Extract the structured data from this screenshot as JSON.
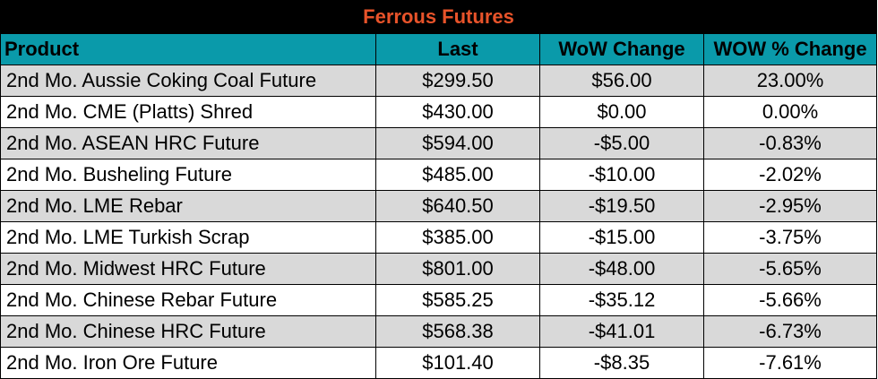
{
  "title": "Ferrous Futures",
  "colors": {
    "title_bg": "#000000",
    "title_text": "#e8532a",
    "header_bg": "#0a9aaa",
    "row_shaded": "#d9d9d9",
    "row_plain": "#ffffff"
  },
  "headers": [
    "Product",
    "Last",
    "WoW Change",
    "WOW % Change"
  ],
  "rows": [
    [
      "2nd Mo. Aussie Coking Coal Future",
      "$299.50",
      "$56.00",
      "23.00%"
    ],
    [
      "2nd Mo. CME (Platts) Shred",
      "$430.00",
      "$0.00",
      "0.00%"
    ],
    [
      "2nd Mo. ASEAN HRC Future",
      "$594.00",
      "-$5.00",
      "-0.83%"
    ],
    [
      "2nd Mo. Busheling Future",
      "$485.00",
      "-$10.00",
      "-2.02%"
    ],
    [
      "2nd Mo. LME Rebar",
      "$640.50",
      "-$19.50",
      "-2.95%"
    ],
    [
      "2nd Mo. LME Turkish Scrap",
      "$385.00",
      "-$15.00",
      "-3.75%"
    ],
    [
      "2nd Mo. Midwest HRC Future",
      "$801.00",
      "-$48.00",
      "-5.65%"
    ],
    [
      "2nd Mo. Chinese Rebar Future",
      "$585.25",
      "-$35.12",
      "-5.66%"
    ],
    [
      "2nd Mo. Chinese HRC Future",
      "$568.38",
      "-$41.01",
      "-6.73%"
    ],
    [
      "2nd Mo. Iron Ore Future",
      "$101.40",
      "-$8.35",
      "-7.61%"
    ]
  ]
}
